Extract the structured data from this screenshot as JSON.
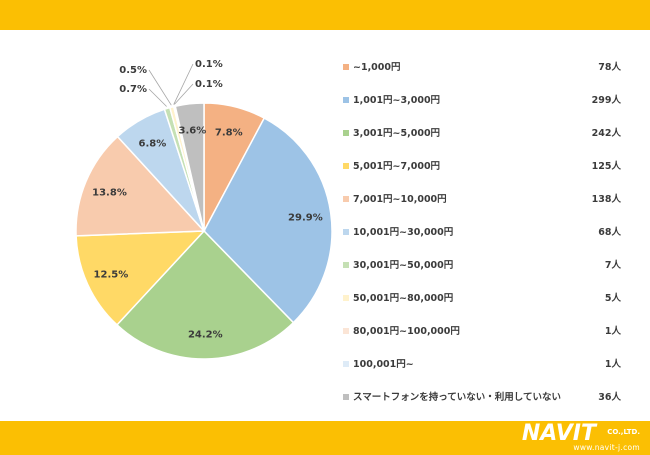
{
  "chart_data": {
    "type": "pie",
    "title": "",
    "start_angle_deg": 0,
    "direction": "clockwise",
    "slices": [
      {
        "label": "~1,000円",
        "count": "78人",
        "percent": 7.8,
        "percent_label": "7.8%",
        "color": "#f4b183"
      },
      {
        "label": "1,001円~3,000円",
        "count": "299人",
        "percent": 29.9,
        "percent_label": "29.9%",
        "color": "#9dc3e6"
      },
      {
        "label": "3,001円~5,000円",
        "count": "242人",
        "percent": 24.2,
        "percent_label": "24.2%",
        "color": "#a9d18e"
      },
      {
        "label": "5,001円~7,000円",
        "count": "125人",
        "percent": 12.5,
        "percent_label": "12.5%",
        "color": "#ffd966"
      },
      {
        "label": "7,001円~10,000円",
        "count": "138人",
        "percent": 13.8,
        "percent_label": "13.8%",
        "color": "#f8cbad"
      },
      {
        "label": "10,001円~30,000円",
        "count": "68人",
        "percent": 6.8,
        "percent_label": "6.8%",
        "color": "#bdd7ee"
      },
      {
        "label": "30,001円~50,000円",
        "count": "7人",
        "percent": 0.7,
        "percent_label": "0.7%",
        "color": "#c5e0b4"
      },
      {
        "label": "50,001円~80,000円",
        "count": "5人",
        "percent": 0.5,
        "percent_label": "0.5%",
        "color": "#fff2cc"
      },
      {
        "label": "80,001円~100,000円",
        "count": "1人",
        "percent": 0.1,
        "percent_label": "0.1%",
        "color": "#fbe5d6"
      },
      {
        "label": "100,001円~",
        "count": "1人",
        "percent": 0.1,
        "percent_label": "0.1%",
        "color": "#deebf7"
      },
      {
        "label": "スマートフォンを持っていない・利用していない",
        "count": "36人",
        "percent": 3.6,
        "percent_label": "3.6%",
        "color": "#bfbfbf"
      }
    ],
    "legend_placement": "right"
  },
  "branding": {
    "logo_main": "NAVIT",
    "logo_co": "CO.,LTD.",
    "logo_url": "www.navit-j.com"
  },
  "colors": {
    "band": "#fbbf03",
    "text": "#3b3b3b"
  }
}
